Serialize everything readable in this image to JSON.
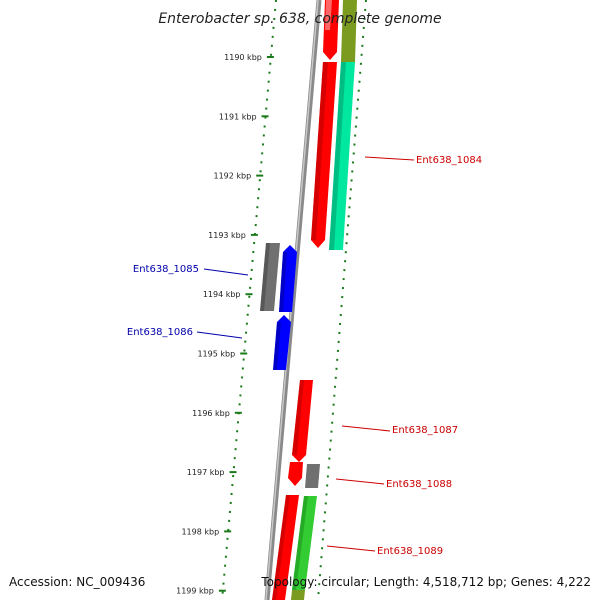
{
  "title": "Enterobacter sp. 638, complete genome",
  "footer": {
    "accession": "Accession: NC_009436",
    "topology": "Topology: circular; Length: 4,518,712 bp; Genes: 4,222"
  },
  "colors": {
    "backbone": "#808080",
    "ruler": "#1a7a1a",
    "forward_label": "#cc0000",
    "reverse_label": "#0000aa",
    "cds_red": "#ff0000",
    "cds_blue": "#0000ff",
    "cds_gray": "#707070",
    "cds_green": "#33cc33",
    "cds_olive": "#7a9a20",
    "cds_teal": "#00e8a0",
    "cds_pink": "#ff8080"
  },
  "ticks": [
    {
      "label": "1190 kbp"
    },
    {
      "label": "1191 kbp"
    },
    {
      "label": "1192 kbp"
    },
    {
      "label": "1193 kbp"
    },
    {
      "label": "1194 kbp"
    },
    {
      "label": "1195 kbp"
    },
    {
      "label": "1196 kbp"
    },
    {
      "label": "1197 kbp"
    },
    {
      "label": "1198 kbp"
    },
    {
      "label": "1199 kbp"
    }
  ],
  "gene_labels": [
    {
      "name": "Ent638_1084",
      "strand": "forward"
    },
    {
      "name": "Ent638_1085",
      "strand": "reverse"
    },
    {
      "name": "Ent638_1086",
      "strand": "reverse"
    },
    {
      "name": "Ent638_1087",
      "strand": "forward"
    },
    {
      "name": "Ent638_1088",
      "strand": "forward"
    },
    {
      "name": "Ent638_1089",
      "strand": "forward"
    }
  ]
}
